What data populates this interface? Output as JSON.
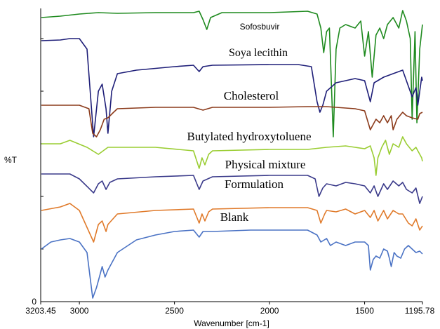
{
  "chart_data": {
    "type": "line",
    "title": "",
    "xlabel": "Wavenumber [cm-1]",
    "ylabel": "%T",
    "xlim": [
      3203.45,
      1195.78
    ],
    "x_reversed": true,
    "x_ticks": [
      "3203.45",
      "3000",
      "2500",
      "2000",
      "1500",
      "1195.78"
    ],
    "y_ticks": [
      "0"
    ],
    "grid": false,
    "legend": "inline-labels",
    "series": [
      {
        "name": "Sofosbuvir",
        "color": "#1e8a1e",
        "points": [
          [
            3200,
            25
          ],
          [
            3100,
            23
          ],
          [
            3000,
            20
          ],
          [
            2950,
            19
          ],
          [
            2900,
            18
          ],
          [
            2800,
            19
          ],
          [
            2600,
            18
          ],
          [
            2400,
            18
          ],
          [
            2370,
            16
          ],
          [
            2350,
            28
          ],
          [
            2330,
            42
          ],
          [
            2310,
            25
          ],
          [
            2250,
            18
          ],
          [
            2000,
            18
          ],
          [
            1800,
            16
          ],
          [
            1750,
            20
          ],
          [
            1730,
            40
          ],
          [
            1715,
            75
          ],
          [
            1700,
            45
          ],
          [
            1685,
            40
          ],
          [
            1665,
            195
          ],
          [
            1650,
            70
          ],
          [
            1630,
            40
          ],
          [
            1600,
            35
          ],
          [
            1550,
            40
          ],
          [
            1520,
            30
          ],
          [
            1500,
            80
          ],
          [
            1480,
            45
          ],
          [
            1460,
            110
          ],
          [
            1440,
            50
          ],
          [
            1420,
            40
          ],
          [
            1400,
            55
          ],
          [
            1380,
            35
          ],
          [
            1350,
            25
          ],
          [
            1320,
            40
          ],
          [
            1300,
            15
          ],
          [
            1280,
            30
          ],
          [
            1260,
            55
          ],
          [
            1250,
            170
          ],
          [
            1235,
            45
          ],
          [
            1225,
            175
          ],
          [
            1210,
            70
          ],
          [
            1195.78,
            35
          ]
        ]
      },
      {
        "name": "Soya lecithin",
        "color": "#1e1e78",
        "points": [
          [
            3200,
            58
          ],
          [
            3100,
            57
          ],
          [
            3050,
            55
          ],
          [
            3000,
            55
          ],
          [
            2960,
            70
          ],
          [
            2925,
            195
          ],
          [
            2900,
            130
          ],
          [
            2880,
            120
          ],
          [
            2860,
            155
          ],
          [
            2850,
            190
          ],
          [
            2830,
            130
          ],
          [
            2800,
            105
          ],
          [
            2700,
            100
          ],
          [
            2500,
            95
          ],
          [
            2400,
            93
          ],
          [
            2370,
            102
          ],
          [
            2350,
            95
          ],
          [
            2300,
            93
          ],
          [
            2000,
            92
          ],
          [
            1850,
            92
          ],
          [
            1780,
            95
          ],
          [
            1750,
            145
          ],
          [
            1735,
            160
          ],
          [
            1720,
            150
          ],
          [
            1700,
            130
          ],
          [
            1650,
            118
          ],
          [
            1600,
            115
          ],
          [
            1550,
            112
          ],
          [
            1500,
            115
          ],
          [
            1470,
            145
          ],
          [
            1450,
            118
          ],
          [
            1400,
            110
          ],
          [
            1350,
            105
          ],
          [
            1300,
            100
          ],
          [
            1250,
            138
          ],
          [
            1230,
            125
          ],
          [
            1220,
            150
          ],
          [
            1200,
            110
          ],
          [
            1195.78,
            115
          ]
        ]
      },
      {
        "name": "Cholesterol",
        "color": "#8b3a1a",
        "points": [
          [
            3200,
            150
          ],
          [
            3000,
            150
          ],
          [
            2950,
            155
          ],
          [
            2930,
            190
          ],
          [
            2910,
            195
          ],
          [
            2890,
            185
          ],
          [
            2870,
            170
          ],
          [
            2850,
            168
          ],
          [
            2820,
            160
          ],
          [
            2800,
            155
          ],
          [
            2600,
            153
          ],
          [
            2400,
            153
          ],
          [
            2350,
            157
          ],
          [
            2300,
            153
          ],
          [
            2000,
            153
          ],
          [
            1800,
            152
          ],
          [
            1700,
            152
          ],
          [
            1550,
            155
          ],
          [
            1500,
            158
          ],
          [
            1470,
            185
          ],
          [
            1460,
            180
          ],
          [
            1440,
            170
          ],
          [
            1420,
            175
          ],
          [
            1400,
            165
          ],
          [
            1380,
            175
          ],
          [
            1360,
            165
          ],
          [
            1350,
            185
          ],
          [
            1330,
            170
          ],
          [
            1300,
            160
          ],
          [
            1280,
            165
          ],
          [
            1250,
            168
          ],
          [
            1220,
            170
          ],
          [
            1210,
            162
          ],
          [
            1195.78,
            160
          ]
        ]
      },
      {
        "name": "Butylated hydroxytoluene",
        "color": "#9acd32",
        "points": [
          [
            3200,
            205
          ],
          [
            3100,
            205
          ],
          [
            3050,
            200
          ],
          [
            2960,
            210
          ],
          [
            2900,
            220
          ],
          [
            2850,
            210
          ],
          [
            2800,
            210
          ],
          [
            2600,
            210
          ],
          [
            2400,
            215
          ],
          [
            2370,
            240
          ],
          [
            2355,
            225
          ],
          [
            2340,
            235
          ],
          [
            2320,
            220
          ],
          [
            2300,
            215
          ],
          [
            2000,
            213
          ],
          [
            1800,
            213
          ],
          [
            1700,
            210
          ],
          [
            1600,
            208
          ],
          [
            1550,
            210
          ],
          [
            1500,
            212
          ],
          [
            1470,
            208
          ],
          [
            1450,
            225
          ],
          [
            1440,
            250
          ],
          [
            1430,
            225
          ],
          [
            1410,
            210
          ],
          [
            1390,
            200
          ],
          [
            1370,
            220
          ],
          [
            1350,
            205
          ],
          [
            1320,
            210
          ],
          [
            1300,
            195
          ],
          [
            1280,
            205
          ],
          [
            1250,
            215
          ],
          [
            1230,
            210
          ],
          [
            1200,
            225
          ],
          [
            1195.78,
            230
          ]
        ]
      },
      {
        "name": "Physical mixture",
        "color": "#3a3a8a",
        "points": [
          [
            3200,
            248
          ],
          [
            3050,
            248
          ],
          [
            3000,
            255
          ],
          [
            2925,
            275
          ],
          [
            2900,
            262
          ],
          [
            2880,
            258
          ],
          [
            2860,
            270
          ],
          [
            2840,
            260
          ],
          [
            2800,
            255
          ],
          [
            2600,
            252
          ],
          [
            2400,
            250
          ],
          [
            2370,
            270
          ],
          [
            2350,
            258
          ],
          [
            2300,
            252
          ],
          [
            2000,
            250
          ],
          [
            1800,
            250
          ],
          [
            1760,
            255
          ],
          [
            1740,
            280
          ],
          [
            1720,
            268
          ],
          [
            1700,
            262
          ],
          [
            1650,
            265
          ],
          [
            1600,
            260
          ],
          [
            1550,
            262
          ],
          [
            1500,
            265
          ],
          [
            1470,
            275
          ],
          [
            1450,
            265
          ],
          [
            1430,
            280
          ],
          [
            1400,
            262
          ],
          [
            1380,
            270
          ],
          [
            1350,
            258
          ],
          [
            1320,
            265
          ],
          [
            1300,
            260
          ],
          [
            1280,
            270
          ],
          [
            1250,
            275
          ],
          [
            1230,
            268
          ],
          [
            1210,
            290
          ],
          [
            1195.78,
            280
          ]
        ]
      },
      {
        "name": "Formulation",
        "color": "#e07a2a",
        "points": [
          [
            3200,
            300
          ],
          [
            3100,
            295
          ],
          [
            3050,
            290
          ],
          [
            3000,
            300
          ],
          [
            2925,
            345
          ],
          [
            2900,
            320
          ],
          [
            2880,
            315
          ],
          [
            2860,
            330
          ],
          [
            2850,
            320
          ],
          [
            2800,
            305
          ],
          [
            2600,
            300
          ],
          [
            2400,
            298
          ],
          [
            2370,
            318
          ],
          [
            2355,
            305
          ],
          [
            2340,
            315
          ],
          [
            2320,
            302
          ],
          [
            2300,
            298
          ],
          [
            2000,
            296
          ],
          [
            1800,
            296
          ],
          [
            1750,
            300
          ],
          [
            1730,
            318
          ],
          [
            1710,
            305
          ],
          [
            1700,
            300
          ],
          [
            1650,
            302
          ],
          [
            1600,
            298
          ],
          [
            1550,
            305
          ],
          [
            1500,
            300
          ],
          [
            1470,
            310
          ],
          [
            1450,
            300
          ],
          [
            1430,
            315
          ],
          [
            1400,
            300
          ],
          [
            1380,
            312
          ],
          [
            1350,
            300
          ],
          [
            1320,
            305
          ],
          [
            1300,
            305
          ],
          [
            1270,
            318
          ],
          [
            1250,
            322
          ],
          [
            1230,
            312
          ],
          [
            1210,
            328
          ],
          [
            1195.78,
            322
          ]
        ]
      },
      {
        "name": "Blank",
        "color": "#4a72c4",
        "points": [
          [
            3200,
            355
          ],
          [
            3150,
            345
          ],
          [
            3100,
            342
          ],
          [
            3050,
            340
          ],
          [
            3000,
            345
          ],
          [
            2960,
            360
          ],
          [
            2930,
            425
          ],
          [
            2910,
            410
          ],
          [
            2895,
            395
          ],
          [
            2880,
            380
          ],
          [
            2865,
            395
          ],
          [
            2850,
            385
          ],
          [
            2820,
            370
          ],
          [
            2800,
            360
          ],
          [
            2700,
            342
          ],
          [
            2600,
            335
          ],
          [
            2500,
            330
          ],
          [
            2400,
            328
          ],
          [
            2370,
            338
          ],
          [
            2350,
            330
          ],
          [
            2300,
            330
          ],
          [
            2100,
            328
          ],
          [
            2000,
            328
          ],
          [
            1800,
            328
          ],
          [
            1750,
            335
          ],
          [
            1730,
            345
          ],
          [
            1700,
            340
          ],
          [
            1680,
            350
          ],
          [
            1650,
            345
          ],
          [
            1600,
            350
          ],
          [
            1550,
            345
          ],
          [
            1520,
            345
          ],
          [
            1500,
            345
          ],
          [
            1480,
            350
          ],
          [
            1470,
            385
          ],
          [
            1455,
            370
          ],
          [
            1440,
            365
          ],
          [
            1420,
            368
          ],
          [
            1400,
            355
          ],
          [
            1380,
            358
          ],
          [
            1370,
            368
          ],
          [
            1360,
            380
          ],
          [
            1345,
            360
          ],
          [
            1330,
            365
          ],
          [
            1310,
            368
          ],
          [
            1290,
            355
          ],
          [
            1270,
            350
          ],
          [
            1250,
            355
          ],
          [
            1230,
            360
          ],
          [
            1210,
            358
          ],
          [
            1195.78,
            362
          ]
        ]
      }
    ],
    "annotations": [
      {
        "text": "Sofosbuvir",
        "series": "Sofosbuvir"
      },
      {
        "text": "Soya lecithin",
        "series": "Soya lecithin"
      },
      {
        "text": "Cholesterol",
        "series": "Cholesterol"
      },
      {
        "text": "Butylated hydroxytoluene",
        "series": "Butylated hydroxytoluene"
      },
      {
        "text": "Physical mixture",
        "series": "Physical mixture"
      },
      {
        "text": "Formulation",
        "series": "Formulation"
      },
      {
        "text": "Blank",
        "series": "Blank"
      }
    ]
  }
}
